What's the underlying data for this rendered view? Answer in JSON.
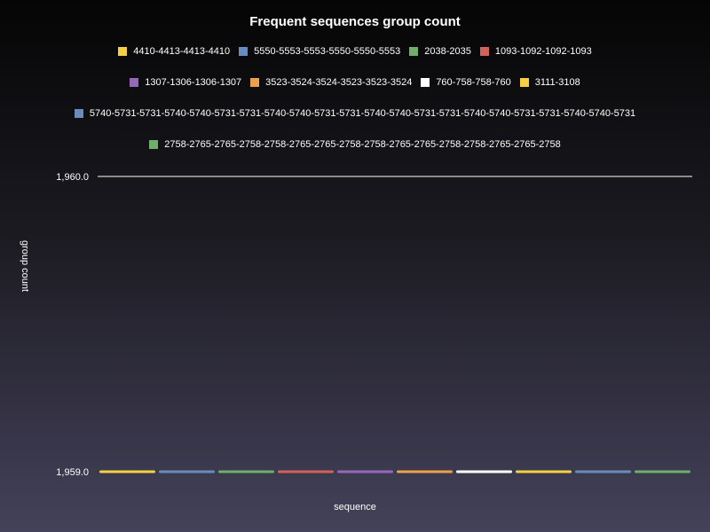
{
  "chart_data": {
    "type": "bar",
    "title": "Frequent sequences group count",
    "xlabel": "sequence",
    "ylabel": "group count",
    "ylim": [
      1959.0,
      1960.0
    ],
    "yticks": [
      "1,960.0",
      "1,959.0"
    ],
    "legend_position": "top",
    "grid": false,
    "series": [
      {
        "name": "4410-4413-4413-4410",
        "value": 1959,
        "color": "#f5d042"
      },
      {
        "name": "5550-5553-5553-5550-5550-5553",
        "value": 1959,
        "color": "#6a8cbc"
      },
      {
        "name": "2038-2035",
        "value": 1959,
        "color": "#6fae6b"
      },
      {
        "name": "1093-1092-1092-1093",
        "value": 1959,
        "color": "#d2625a"
      },
      {
        "name": "1307-1306-1306-1307",
        "value": 1959,
        "color": "#9569b8"
      },
      {
        "name": "3523-3524-3524-3523-3523-3524",
        "value": 1959,
        "color": "#efa04a"
      },
      {
        "name": "760-758-758-760",
        "value": 1959,
        "color": "#ffffff"
      },
      {
        "name": "3111-3108",
        "value": 1959,
        "color": "#f5d042"
      },
      {
        "name": "5740-5731-5731-5740-5740-5731-5731-5740-5740-5731-5731-5740-5740-5731-5731-5740-5740-5731-5731-5740-5740-5731",
        "value": 1959,
        "color": "#6a8cbc"
      },
      {
        "name": "2758-2765-2765-2758-2758-2765-2765-2758-2758-2765-2765-2758-2758-2765-2765-2758",
        "value": 1959,
        "color": "#6fae6b"
      }
    ]
  }
}
